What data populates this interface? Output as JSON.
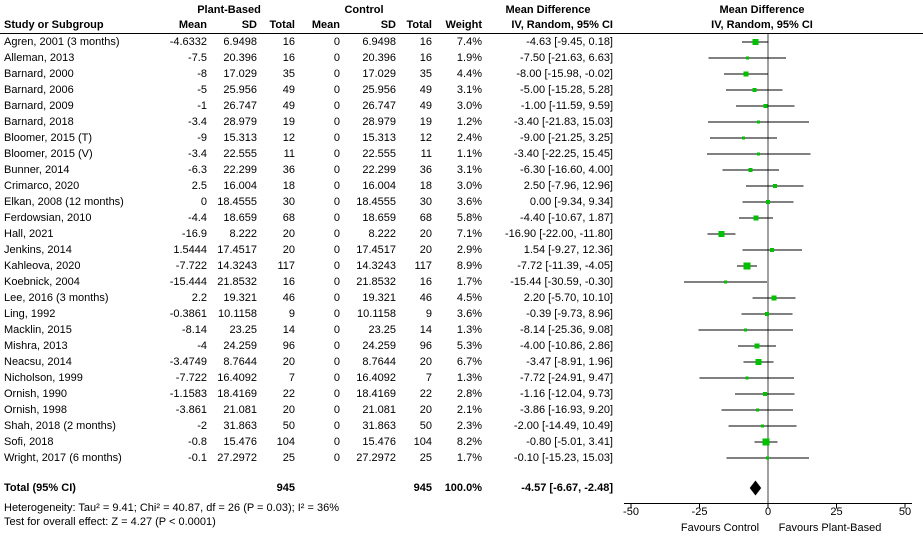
{
  "header": {
    "group_plant": "Plant-Based",
    "group_control": "Control",
    "study": "Study or Subgroup",
    "mean": "Mean",
    "sd": "SD",
    "total": "Total",
    "weight": "Weight",
    "md_title": "Mean Difference",
    "md_method": "IV, Random, 95% CI"
  },
  "footnotes": {
    "heterogeneity": "Heterogeneity: Tau² = 9.41; Chi² = 40.87, df = 26 (P = 0.03); I² = 36%",
    "overall_effect": "Test for overall effect: Z = 4.27 (P < 0.0001)"
  },
  "chart_data": {
    "type": "forest",
    "title": "Mean Difference",
    "method": "IV, Random, 95% CI",
    "xlim": [
      -50,
      50
    ],
    "ticks": [
      -50,
      -25,
      0,
      25,
      50
    ],
    "favours_left": "Favours Control",
    "favours_right": "Favours Plant-Based",
    "marker_color": "#00c000",
    "studies": [
      {
        "name": "Agren, 2001 (3 months)",
        "mean_pb": "-4.6332",
        "sd_pb": "6.9498",
        "n_pb": "16",
        "mean_c": "0",
        "sd_c": "6.9498",
        "n_c": "16",
        "weight": "7.4%",
        "ci_label": "-4.63 [-9.45, 0.18]",
        "md": -4.63,
        "lo": -9.45,
        "hi": 0.18
      },
      {
        "name": "Alleman, 2013",
        "mean_pb": "-7.5",
        "sd_pb": "20.396",
        "n_pb": "16",
        "mean_c": "0",
        "sd_c": "20.396",
        "n_c": "16",
        "weight": "1.9%",
        "ci_label": "-7.50 [-21.63, 6.63]",
        "md": -7.5,
        "lo": -21.63,
        "hi": 6.63
      },
      {
        "name": "Barnard, 2000",
        "mean_pb": "-8",
        "sd_pb": "17.029",
        "n_pb": "35",
        "mean_c": "0",
        "sd_c": "17.029",
        "n_c": "35",
        "weight": "4.4%",
        "ci_label": "-8.00 [-15.98, -0.02]",
        "md": -8,
        "lo": -15.98,
        "hi": -0.02
      },
      {
        "name": "Barnard, 2006",
        "mean_pb": "-5",
        "sd_pb": "25.956",
        "n_pb": "49",
        "mean_c": "0",
        "sd_c": "25.956",
        "n_c": "49",
        "weight": "3.1%",
        "ci_label": "-5.00 [-15.28, 5.28]",
        "md": -5,
        "lo": -15.28,
        "hi": 5.28
      },
      {
        "name": "Barnard, 2009",
        "mean_pb": "-1",
        "sd_pb": "26.747",
        "n_pb": "49",
        "mean_c": "0",
        "sd_c": "26.747",
        "n_c": "49",
        "weight": "3.0%",
        "ci_label": "-1.00 [-11.59, 9.59]",
        "md": -1,
        "lo": -11.59,
        "hi": 9.59
      },
      {
        "name": "Barnard, 2018",
        "mean_pb": "-3.4",
        "sd_pb": "28.979",
        "n_pb": "19",
        "mean_c": "0",
        "sd_c": "28.979",
        "n_c": "19",
        "weight": "1.2%",
        "ci_label": "-3.40 [-21.83, 15.03]",
        "md": -3.4,
        "lo": -21.83,
        "hi": 15.03
      },
      {
        "name": "Bloomer, 2015 (T)",
        "mean_pb": "-9",
        "sd_pb": "15.313",
        "n_pb": "12",
        "mean_c": "0",
        "sd_c": "15.313",
        "n_c": "12",
        "weight": "2.4%",
        "ci_label": "-9.00 [-21.25, 3.25]",
        "md": -9,
        "lo": -21.25,
        "hi": 3.25
      },
      {
        "name": "Bloomer, 2015 (V)",
        "mean_pb": "-3.4",
        "sd_pb": "22.555",
        "n_pb": "11",
        "mean_c": "0",
        "sd_c": "22.555",
        "n_c": "11",
        "weight": "1.1%",
        "ci_label": "-3.40 [-22.25, 15.45]",
        "md": -3.4,
        "lo": -22.25,
        "hi": 15.45
      },
      {
        "name": "Bunner, 2014",
        "mean_pb": "-6.3",
        "sd_pb": "22.299",
        "n_pb": "36",
        "mean_c": "0",
        "sd_c": "22.299",
        "n_c": "36",
        "weight": "3.1%",
        "ci_label": "-6.30 [-16.60, 4.00]",
        "md": -6.3,
        "lo": -16.6,
        "hi": 4
      },
      {
        "name": "Crimarco, 2020",
        "mean_pb": "2.5",
        "sd_pb": "16.004",
        "n_pb": "18",
        "mean_c": "0",
        "sd_c": "16.004",
        "n_c": "18",
        "weight": "3.0%",
        "ci_label": "2.50 [-7.96, 12.96]",
        "md": 2.5,
        "lo": -7.96,
        "hi": 12.96
      },
      {
        "name": "Elkan, 2008 (12 months)",
        "mean_pb": "0",
        "sd_pb": "18.4555",
        "n_pb": "30",
        "mean_c": "0",
        "sd_c": "18.4555",
        "n_c": "30",
        "weight": "3.6%",
        "ci_label": "0.00 [-9.34, 9.34]",
        "md": 0,
        "lo": -9.34,
        "hi": 9.34
      },
      {
        "name": "Ferdowsian, 2010",
        "mean_pb": "-4.4",
        "sd_pb": "18.659",
        "n_pb": "68",
        "mean_c": "0",
        "sd_c": "18.659",
        "n_c": "68",
        "weight": "5.8%",
        "ci_label": "-4.40 [-10.67, 1.87]",
        "md": -4.4,
        "lo": -10.67,
        "hi": 1.87
      },
      {
        "name": "Hall, 2021",
        "mean_pb": "-16.9",
        "sd_pb": "8.222",
        "n_pb": "20",
        "mean_c": "0",
        "sd_c": "8.222",
        "n_c": "20",
        "weight": "7.1%",
        "ci_label": "-16.90 [-22.00, -11.80]",
        "md": -16.9,
        "lo": -22,
        "hi": -11.8
      },
      {
        "name": "Jenkins, 2014",
        "mean_pb": "1.5444",
        "sd_pb": "17.4517",
        "n_pb": "20",
        "mean_c": "0",
        "sd_c": "17.4517",
        "n_c": "20",
        "weight": "2.9%",
        "ci_label": "1.54 [-9.27, 12.36]",
        "md": 1.54,
        "lo": -9.27,
        "hi": 12.36
      },
      {
        "name": "Kahleova, 2020",
        "mean_pb": "-7.722",
        "sd_pb": "14.3243",
        "n_pb": "117",
        "mean_c": "0",
        "sd_c": "14.3243",
        "n_c": "117",
        "weight": "8.9%",
        "ci_label": "-7.72 [-11.39, -4.05]",
        "md": -7.72,
        "lo": -11.39,
        "hi": -4.05
      },
      {
        "name": "Koebnick, 2004",
        "mean_pb": "-15.444",
        "sd_pb": "21.8532",
        "n_pb": "16",
        "mean_c": "0",
        "sd_c": "21.8532",
        "n_c": "16",
        "weight": "1.7%",
        "ci_label": "-15.44 [-30.59, -0.30]",
        "md": -15.44,
        "lo": -30.59,
        "hi": -0.3
      },
      {
        "name": "Lee, 2016 (3 months)",
        "mean_pb": "2.2",
        "sd_pb": "19.321",
        "n_pb": "46",
        "mean_c": "0",
        "sd_c": "19.321",
        "n_c": "46",
        "weight": "4.5%",
        "ci_label": "2.20 [-5.70, 10.10]",
        "md": 2.2,
        "lo": -5.7,
        "hi": 10.1
      },
      {
        "name": "Ling, 1992",
        "mean_pb": "-0.3861",
        "sd_pb": "10.1158",
        "n_pb": "9",
        "mean_c": "0",
        "sd_c": "10.1158",
        "n_c": "9",
        "weight": "3.6%",
        "ci_label": "-0.39 [-9.73, 8.96]",
        "md": -0.39,
        "lo": -9.73,
        "hi": 8.96
      },
      {
        "name": "Macklin, 2015",
        "mean_pb": "-8.14",
        "sd_pb": "23.25",
        "n_pb": "14",
        "mean_c": "0",
        "sd_c": "23.25",
        "n_c": "14",
        "weight": "1.3%",
        "ci_label": "-8.14 [-25.36, 9.08]",
        "md": -8.14,
        "lo": -25.36,
        "hi": 9.08
      },
      {
        "name": "Mishra, 2013",
        "mean_pb": "-4",
        "sd_pb": "24.259",
        "n_pb": "96",
        "mean_c": "0",
        "sd_c": "24.259",
        "n_c": "96",
        "weight": "5.3%",
        "ci_label": "-4.00 [-10.86, 2.86]",
        "md": -4,
        "lo": -10.86,
        "hi": 2.86
      },
      {
        "name": "Neacsu, 2014",
        "mean_pb": "-3.4749",
        "sd_pb": "8.7644",
        "n_pb": "20",
        "mean_c": "0",
        "sd_c": "8.7644",
        "n_c": "20",
        "weight": "6.7%",
        "ci_label": "-3.47 [-8.91, 1.96]",
        "md": -3.47,
        "lo": -8.91,
        "hi": 1.96
      },
      {
        "name": "Nicholson, 1999",
        "mean_pb": "-7.722",
        "sd_pb": "16.4092",
        "n_pb": "7",
        "mean_c": "0",
        "sd_c": "16.4092",
        "n_c": "7",
        "weight": "1.3%",
        "ci_label": "-7.72 [-24.91, 9.47]",
        "md": -7.72,
        "lo": -24.91,
        "hi": 9.47
      },
      {
        "name": "Ornish, 1990",
        "mean_pb": "-1.1583",
        "sd_pb": "18.4169",
        "n_pb": "22",
        "mean_c": "0",
        "sd_c": "18.4169",
        "n_c": "22",
        "weight": "2.8%",
        "ci_label": "-1.16 [-12.04, 9.73]",
        "md": -1.16,
        "lo": -12.04,
        "hi": 9.73
      },
      {
        "name": "Ornish, 1998",
        "mean_pb": "-3.861",
        "sd_pb": "21.081",
        "n_pb": "20",
        "mean_c": "0",
        "sd_c": "21.081",
        "n_c": "20",
        "weight": "2.1%",
        "ci_label": "-3.86 [-16.93, 9.20]",
        "md": -3.86,
        "lo": -16.93,
        "hi": 9.2
      },
      {
        "name": "Shah, 2018 (2 months)",
        "mean_pb": "-2",
        "sd_pb": "31.863",
        "n_pb": "50",
        "mean_c": "0",
        "sd_c": "31.863",
        "n_c": "50",
        "weight": "2.3%",
        "ci_label": "-2.00 [-14.49, 10.49]",
        "md": -2,
        "lo": -14.49,
        "hi": 10.49
      },
      {
        "name": "Sofi, 2018",
        "mean_pb": "-0.8",
        "sd_pb": "15.476",
        "n_pb": "104",
        "mean_c": "0",
        "sd_c": "15.476",
        "n_c": "104",
        "weight": "8.2%",
        "ci_label": "-0.80 [-5.01, 3.41]",
        "md": -0.8,
        "lo": -5.01,
        "hi": 3.41
      },
      {
        "name": "Wright, 2017 (6 months)",
        "mean_pb": "-0.1",
        "sd_pb": "27.2972",
        "n_pb": "25",
        "mean_c": "0",
        "sd_c": "27.2972",
        "n_c": "25",
        "weight": "1.7%",
        "ci_label": "-0.10 [-15.23, 15.03]",
        "md": -0.1,
        "lo": -15.23,
        "hi": 15.03
      }
    ],
    "total": {
      "label": "Total (95% CI)",
      "n_pb": "945",
      "n_c": "945",
      "weight": "100.0%",
      "ci_label": "-4.57 [-6.67, -2.48]",
      "md": -4.57,
      "lo": -6.67,
      "hi": -2.48
    }
  }
}
